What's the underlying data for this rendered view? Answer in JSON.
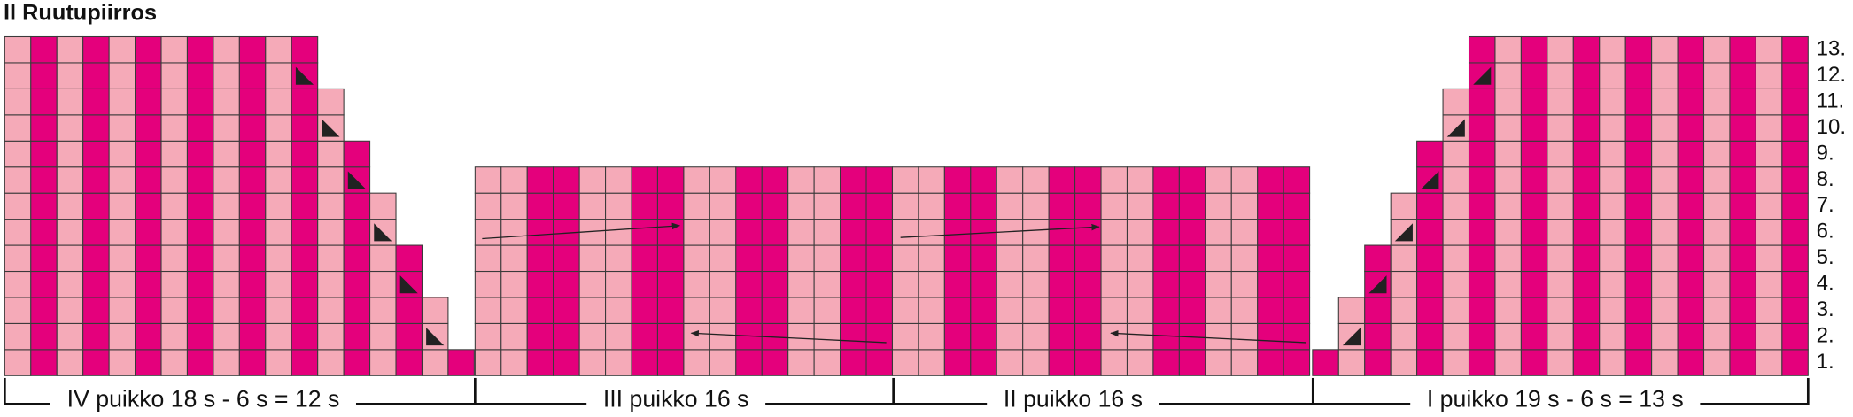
{
  "title": "II Ruutupiirros",
  "row_labels": [
    "13.",
    "12.",
    "11.",
    "10.",
    "9.",
    "8.",
    "7.",
    "6.",
    "5.",
    "4.",
    "3.",
    "2.",
    "1."
  ],
  "sections": [
    "IV puikko 18 s - 6 s = 12 s",
    "III puikko 16 s",
    "II puikko 16 s",
    "I puikko 19 s - 6 s = 13 s"
  ]
}
